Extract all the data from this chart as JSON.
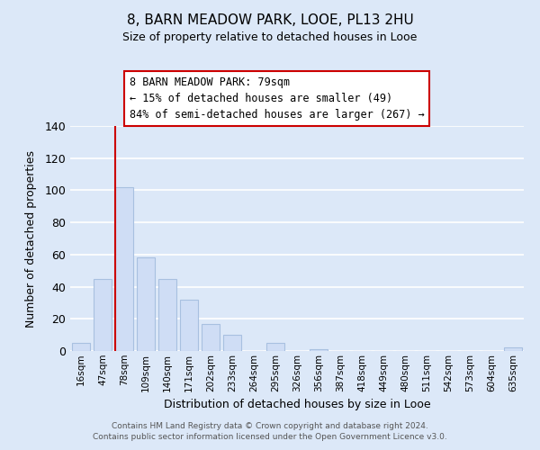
{
  "title": "8, BARN MEADOW PARK, LOOE, PL13 2HU",
  "subtitle": "Size of property relative to detached houses in Looe",
  "xlabel": "Distribution of detached houses by size in Looe",
  "ylabel": "Number of detached properties",
  "bar_labels": [
    "16sqm",
    "47sqm",
    "78sqm",
    "109sqm",
    "140sqm",
    "171sqm",
    "202sqm",
    "233sqm",
    "264sqm",
    "295sqm",
    "326sqm",
    "356sqm",
    "387sqm",
    "418sqm",
    "449sqm",
    "480sqm",
    "511sqm",
    "542sqm",
    "573sqm",
    "604sqm",
    "635sqm"
  ],
  "bar_values": [
    5,
    45,
    102,
    58,
    45,
    32,
    17,
    10,
    0,
    5,
    0,
    1,
    0,
    0,
    0,
    0,
    0,
    0,
    0,
    0,
    2
  ],
  "bar_color": "#cfddf5",
  "bar_edge_color": "#a8c0e0",
  "property_line_index": 2,
  "property_line_color": "#cc0000",
  "ylim": [
    0,
    140
  ],
  "yticks": [
    0,
    20,
    40,
    60,
    80,
    100,
    120,
    140
  ],
  "annotation_title": "8 BARN MEADOW PARK: 79sqm",
  "annotation_line1": "← 15% of detached houses are smaller (49)",
  "annotation_line2": "84% of semi-detached houses are larger (267) →",
  "annotation_box_color": "#ffffff",
  "annotation_border_color": "#cc0000",
  "footer_line1": "Contains HM Land Registry data © Crown copyright and database right 2024.",
  "footer_line2": "Contains public sector information licensed under the Open Government Licence v3.0.",
  "background_color": "#dce8f8",
  "plot_background_color": "#dce8f8",
  "grid_color": "#ffffff"
}
